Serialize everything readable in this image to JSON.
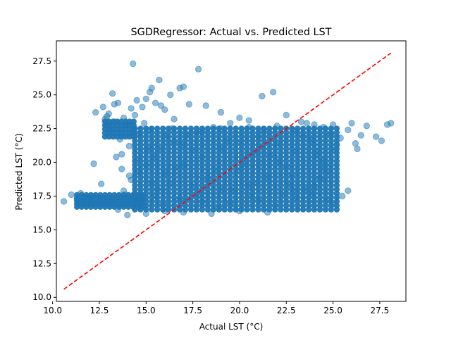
{
  "chart_data": {
    "type": "scatter",
    "title": "SGDRegressor: Actual vs. Predicted LST",
    "xlabel": "Actual LST (°C)",
    "ylabel": "Predicted LST (°C)",
    "xlim": [
      10.2,
      28.9
    ],
    "ylim": [
      9.7,
      29.0
    ],
    "xticks": [
      10.0,
      12.5,
      15.0,
      17.5,
      20.0,
      22.5,
      25.0,
      27.5
    ],
    "xtick_labels": [
      "10.0",
      "12.5",
      "15.0",
      "17.5",
      "20.0",
      "22.5",
      "25.0",
      "27.5"
    ],
    "yticks": [
      10.0,
      12.5,
      15.0,
      17.5,
      20.0,
      22.5,
      25.0,
      27.5
    ],
    "ytick_labels": [
      "10.0",
      "12.5",
      "15.0",
      "17.5",
      "20.0",
      "22.5",
      "25.0",
      "27.5"
    ],
    "grid": false,
    "series": [
      {
        "marker": "circle",
        "color": "#1f77b4",
        "alpha": 0.5,
        "points": [
          [
            10.6,
            17.1
          ],
          [
            11.0,
            17.6
          ],
          [
            11.3,
            17.3
          ],
          [
            11.5,
            17.7
          ],
          [
            11.8,
            17.0
          ],
          [
            12.0,
            17.3
          ],
          [
            12.2,
            19.9
          ],
          [
            12.3,
            23.7
          ],
          [
            12.6,
            18.4
          ],
          [
            12.7,
            24.1
          ],
          [
            12.8,
            23.2
          ],
          [
            12.9,
            22.8
          ],
          [
            13.0,
            23.6
          ],
          [
            13.1,
            22.4
          ],
          [
            13.2,
            25.1
          ],
          [
            13.3,
            24.3
          ],
          [
            13.4,
            20.4
          ],
          [
            13.5,
            24.4
          ],
          [
            13.6,
            21.7
          ],
          [
            13.7,
            19.5
          ],
          [
            13.8,
            23.3
          ],
          [
            14.0,
            22.8
          ],
          [
            14.1,
            21.2
          ],
          [
            14.2,
            24.0
          ],
          [
            14.3,
            27.3
          ],
          [
            14.4,
            23.5
          ],
          [
            14.5,
            24.6
          ],
          [
            14.6,
            22.1
          ],
          [
            14.8,
            24.1
          ],
          [
            15.0,
            24.7
          ],
          [
            15.2,
            25.2
          ],
          [
            15.3,
            25.5
          ],
          [
            15.5,
            24.4
          ],
          [
            15.7,
            26.1
          ],
          [
            15.8,
            24.2
          ],
          [
            16.0,
            23.9
          ],
          [
            16.3,
            25.0
          ],
          [
            16.5,
            23.2
          ],
          [
            16.8,
            25.5
          ],
          [
            17.0,
            25.6
          ],
          [
            17.3,
            24.3
          ],
          [
            17.8,
            26.9
          ],
          [
            18.2,
            24.2
          ],
          [
            19.0,
            23.7
          ],
          [
            19.5,
            22.9
          ],
          [
            20.0,
            23.3
          ],
          [
            20.5,
            23.1
          ],
          [
            21.2,
            24.9
          ],
          [
            21.8,
            25.2
          ],
          [
            22.5,
            23.5
          ],
          [
            23.3,
            23.0
          ],
          [
            24.0,
            22.8
          ],
          [
            24.5,
            22.6
          ],
          [
            25.0,
            22.8
          ],
          [
            25.4,
            21.8
          ],
          [
            25.8,
            22.4
          ],
          [
            26.0,
            22.9
          ],
          [
            26.2,
            21.4
          ],
          [
            26.5,
            22.0
          ],
          [
            26.8,
            22.7
          ],
          [
            27.3,
            21.9
          ],
          [
            27.6,
            21.6
          ],
          [
            27.9,
            22.8
          ],
          [
            28.1,
            22.9
          ],
          [
            25.1,
            20.9
          ],
          [
            24.6,
            19.8
          ],
          [
            24.3,
            18.8
          ],
          [
            24.8,
            17.2
          ],
          [
            25.0,
            16.9
          ],
          [
            25.5,
            17.5
          ],
          [
            25.8,
            17.9
          ],
          [
            24.0,
            18.2
          ],
          [
            23.0,
            17.4
          ],
          [
            21.5,
            16.3
          ],
          [
            20.0,
            16.4
          ],
          [
            18.5,
            16.2
          ],
          [
            17.0,
            16.3
          ],
          [
            16.0,
            16.4
          ],
          [
            15.0,
            16.2
          ],
          [
            14.0,
            16.1
          ],
          [
            13.5,
            16.5
          ],
          [
            13.0,
            17.1
          ],
          [
            12.5,
            17.4
          ],
          [
            13.8,
            17.9
          ],
          [
            14.2,
            18.7
          ],
          [
            14.6,
            19.3
          ],
          [
            15.0,
            19.8
          ],
          [
            15.4,
            20.4
          ],
          [
            15.8,
            21.0
          ],
          [
            16.5,
            21.5
          ],
          [
            17.2,
            22.0
          ],
          [
            18.0,
            22.3
          ],
          [
            19.0,
            22.5
          ],
          [
            20.5,
            22.6
          ],
          [
            22.0,
            22.7
          ],
          [
            23.0,
            22.3
          ],
          [
            23.8,
            21.6
          ],
          [
            24.2,
            20.8
          ],
          [
            24.5,
            20.1
          ],
          [
            24.7,
            19.3
          ],
          [
            23.5,
            18.0
          ],
          [
            22.3,
            17.6
          ],
          [
            21.0,
            17.2
          ],
          [
            19.5,
            17.0
          ],
          [
            18.0,
            17.1
          ],
          [
            16.8,
            17.3
          ],
          [
            15.5,
            17.5
          ],
          [
            15.3,
            18.5
          ],
          [
            16.0,
            19.2
          ],
          [
            17.0,
            19.8
          ],
          [
            18.0,
            20.4
          ],
          [
            19.0,
            21.0
          ],
          [
            20.0,
            21.5
          ],
          [
            21.0,
            21.9
          ],
          [
            22.0,
            21.4
          ],
          [
            23.0,
            20.8
          ],
          [
            22.5,
            19.7
          ],
          [
            21.5,
            18.9
          ],
          [
            20.5,
            18.3
          ],
          [
            19.0,
            18.0
          ],
          [
            17.5,
            18.2
          ],
          [
            16.3,
            18.4
          ],
          [
            17.5,
            20.9
          ],
          [
            18.8,
            19.4
          ],
          [
            20.2,
            19.9
          ],
          [
            21.6,
            20.5
          ],
          [
            19.6,
            17.9
          ],
          [
            16.9,
            21.3
          ],
          [
            22.8,
            19.1
          ],
          [
            14.9,
            22.9
          ],
          [
            13.3,
            23.0
          ],
          [
            12.9,
            23.4
          ],
          [
            23.6,
            22.9
          ],
          [
            24.9,
            22.1
          ],
          [
            25.2,
            21.3
          ],
          [
            11.5,
            17.1
          ],
          [
            12.1,
            17.0
          ],
          [
            26.3,
            21.0
          ],
          [
            13.7,
            20.6
          ],
          [
            14.1,
            19.0
          ],
          [
            13.9,
            17.6
          ],
          [
            15.9,
            16.9
          ],
          [
            18.9,
            16.6
          ],
          [
            21.9,
            16.8
          ],
          [
            23.9,
            17.7
          ],
          [
            24.4,
            19.5
          ],
          [
            22.1,
            20.0
          ],
          [
            20.8,
            20.7
          ],
          [
            19.3,
            21.6
          ],
          [
            17.7,
            22.2
          ],
          [
            16.1,
            22.0
          ],
          [
            15.1,
            21.0
          ],
          [
            14.5,
            20.1
          ],
          [
            16.6,
            19.6
          ],
          [
            18.3,
            18.8
          ],
          [
            20.9,
            18.5
          ],
          [
            22.7,
            18.3
          ],
          [
            23.4,
            21.9
          ],
          [
            21.3,
            22.4
          ],
          [
            18.6,
            22.6
          ],
          [
            16.4,
            22.5
          ],
          [
            15.6,
            18.0
          ],
          [
            19.9,
            19.4
          ],
          [
            17.9,
            17.6
          ],
          [
            20.6,
            17.5
          ],
          [
            22.9,
            17.9
          ],
          [
            24.1,
            20.5
          ],
          [
            15.2,
            22.4
          ]
        ]
      }
    ],
    "reference_line": {
      "style": "dashed",
      "color": "#ff0000",
      "x": [
        10.6,
        28.1
      ],
      "y": [
        10.6,
        28.1
      ]
    }
  }
}
